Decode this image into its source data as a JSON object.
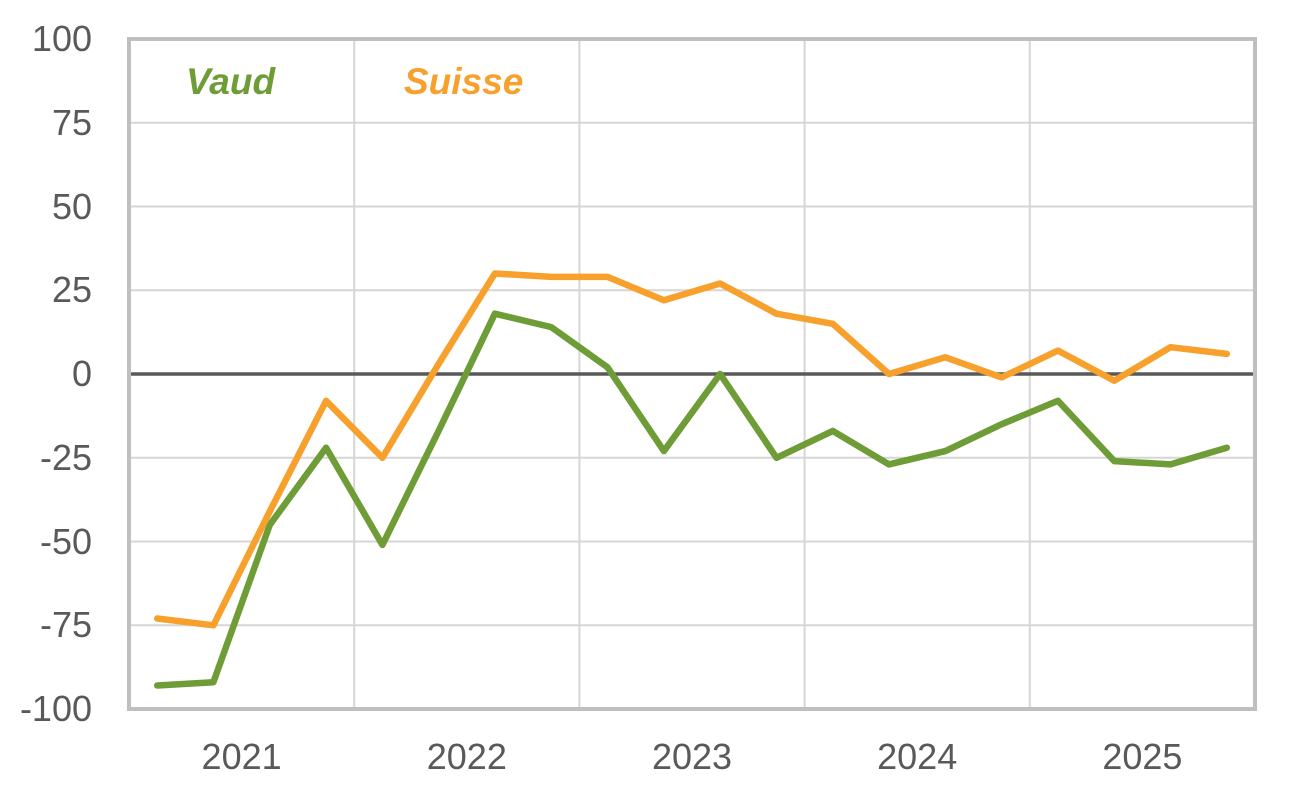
{
  "chart_data": {
    "type": "line",
    "title": "",
    "xlabel": "",
    "ylabel": "",
    "frequency_hint": "quarterly",
    "x_year_labels": [
      "2021",
      "2022",
      "2023",
      "2024",
      "2025"
    ],
    "y_tick_labels": [
      "100",
      "75",
      "50",
      "25",
      "0",
      "-25",
      "-50",
      "-75",
      "-100"
    ],
    "y_ticks": [
      100,
      75,
      50,
      25,
      0,
      -25,
      -50,
      -75,
      -100
    ],
    "ylim": [
      -100,
      100
    ],
    "grid": true,
    "zero_line": true,
    "legend_position": "top-left-inside",
    "series": [
      {
        "name": "Vaud",
        "color": "#6E9C36",
        "values": [
          -93,
          -92,
          -45,
          -22,
          -51,
          -17,
          18,
          14,
          2,
          -23,
          0,
          -25,
          -17,
          -27,
          -23,
          -15,
          -8,
          -26,
          -27,
          -22
        ]
      },
      {
        "name": "Suisse",
        "color": "#F7A02C",
        "values": [
          -73,
          -75,
          -41,
          -8,
          -25,
          3,
          30,
          29,
          29,
          22,
          27,
          18,
          15,
          0,
          5,
          -1,
          7,
          -2,
          8,
          6
        ]
      }
    ],
    "style": {
      "gridline_color": "#D6D6D6",
      "zero_line_color": "#595959",
      "plot_border_color": "#BFBFBF",
      "tick_label_color": "#595959",
      "background": "#FFFFFF"
    }
  }
}
